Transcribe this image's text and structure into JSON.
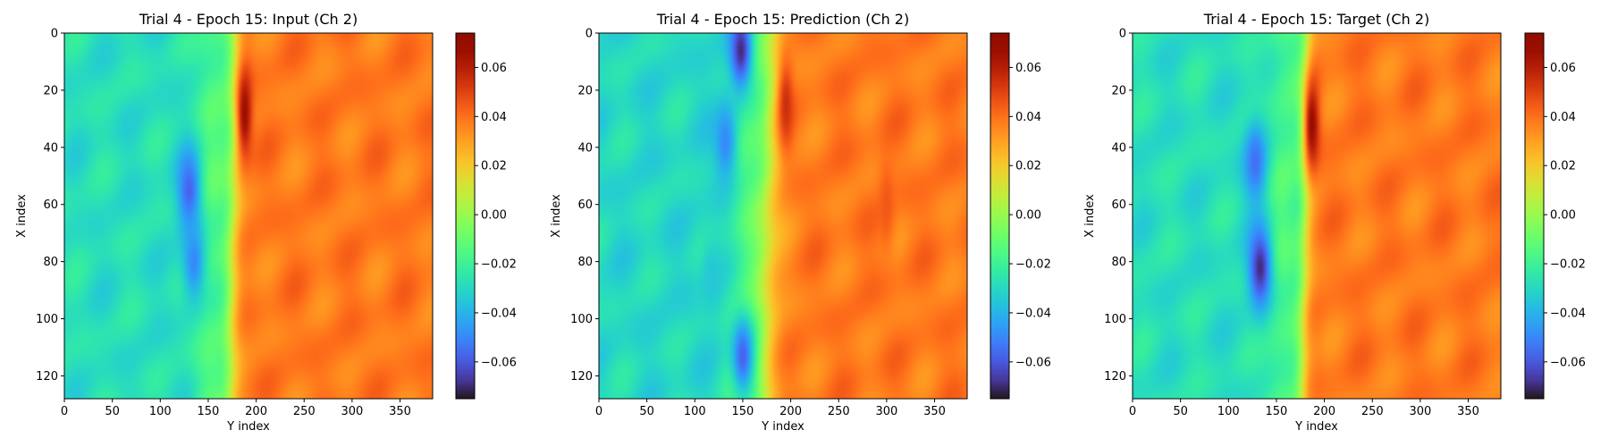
{
  "figure": {
    "colormap": "turbo",
    "colorbar": {
      "vmin": -0.075,
      "vmax": 0.074,
      "ticks": [
        0.06,
        0.04,
        0.02,
        0.0,
        -0.02,
        -0.04,
        -0.06
      ],
      "tick_labels": [
        "0.06",
        "0.04",
        "0.02",
        "0.00",
        "−0.02",
        "−0.04",
        "−0.06"
      ]
    }
  },
  "chart_data": [
    {
      "type": "heatmap",
      "title": "Trial 4 - Epoch 15: Input (Ch 2)",
      "xlabel": "Y index",
      "ylabel": "X index",
      "xlim": [
        0,
        384
      ],
      "ylim": [
        128,
        0
      ],
      "xticks": [
        0,
        50,
        100,
        150,
        200,
        250,
        300,
        350
      ],
      "xtick_labels": [
        "0",
        "50",
        "100",
        "150",
        "200",
        "250",
        "300",
        "350"
      ],
      "yticks": [
        0,
        20,
        40,
        60,
        80,
        100,
        120
      ],
      "ytick_labels": [
        "0",
        "20",
        "40",
        "60",
        "80",
        "100",
        "120"
      ],
      "field": {
        "background_left": -0.028,
        "background_right": 0.038,
        "front_top_y": 178,
        "front_bottom_y": 173,
        "front_width_y": 14,
        "low_blobs": [
          {
            "x_row": 55,
            "y_col": 130,
            "value": -0.058
          },
          {
            "x_row": 80,
            "y_col": 135,
            "value": -0.05
          }
        ],
        "high_blobs": [
          {
            "x_row": 28,
            "y_col": 188,
            "value": 0.067
          }
        ]
      }
    },
    {
      "type": "heatmap",
      "title": "Trial 4 - Epoch 15: Prediction (Ch 2)",
      "xlabel": "Y index",
      "ylabel": "X index",
      "xlim": [
        0,
        384
      ],
      "ylim": [
        128,
        0
      ],
      "xticks": [
        0,
        50,
        100,
        150,
        200,
        250,
        300,
        350
      ],
      "xtick_labels": [
        "0",
        "50",
        "100",
        "150",
        "200",
        "250",
        "300",
        "350"
      ],
      "yticks": [
        0,
        20,
        40,
        60,
        80,
        100,
        120
      ],
      "ytick_labels": [
        "0",
        "20",
        "40",
        "60",
        "80",
        "100",
        "120"
      ],
      "field": {
        "background_left": -0.03,
        "background_right": 0.038,
        "front_top_y": 180,
        "front_bottom_y": 170,
        "front_width_y": 22,
        "low_blobs": [
          {
            "x_row": 6,
            "y_col": 148,
            "value": -0.07
          },
          {
            "x_row": 38,
            "y_col": 132,
            "value": -0.05
          },
          {
            "x_row": 113,
            "y_col": 150,
            "value": -0.058
          },
          {
            "x_row": 85,
            "y_col": 118,
            "value": -0.035
          }
        ],
        "high_blobs": [
          {
            "x_row": 25,
            "y_col": 195,
            "value": 0.055
          },
          {
            "x_row": 60,
            "y_col": 300,
            "value": 0.045
          }
        ]
      }
    },
    {
      "type": "heatmap",
      "title": "Trial 4 - Epoch 15: Target (Ch 2)",
      "xlabel": "Y index",
      "ylabel": "X index",
      "xlim": [
        0,
        384
      ],
      "ylim": [
        128,
        0
      ],
      "xticks": [
        0,
        50,
        100,
        150,
        200,
        250,
        300,
        350
      ],
      "xtick_labels": [
        "0",
        "50",
        "100",
        "150",
        "200",
        "250",
        "300",
        "350"
      ],
      "yticks": [
        0,
        20,
        40,
        60,
        80,
        100,
        120
      ],
      "ytick_labels": [
        "0",
        "20",
        "40",
        "60",
        "80",
        "100",
        "120"
      ],
      "field": {
        "background_left": -0.028,
        "background_right": 0.038,
        "front_top_y": 182,
        "front_bottom_y": 177,
        "front_width_y": 12,
        "low_blobs": [
          {
            "x_row": 45,
            "y_col": 128,
            "value": -0.055
          },
          {
            "x_row": 82,
            "y_col": 133,
            "value": -0.07
          }
        ],
        "high_blobs": [
          {
            "x_row": 32,
            "y_col": 187,
            "value": 0.068
          }
        ]
      }
    }
  ]
}
